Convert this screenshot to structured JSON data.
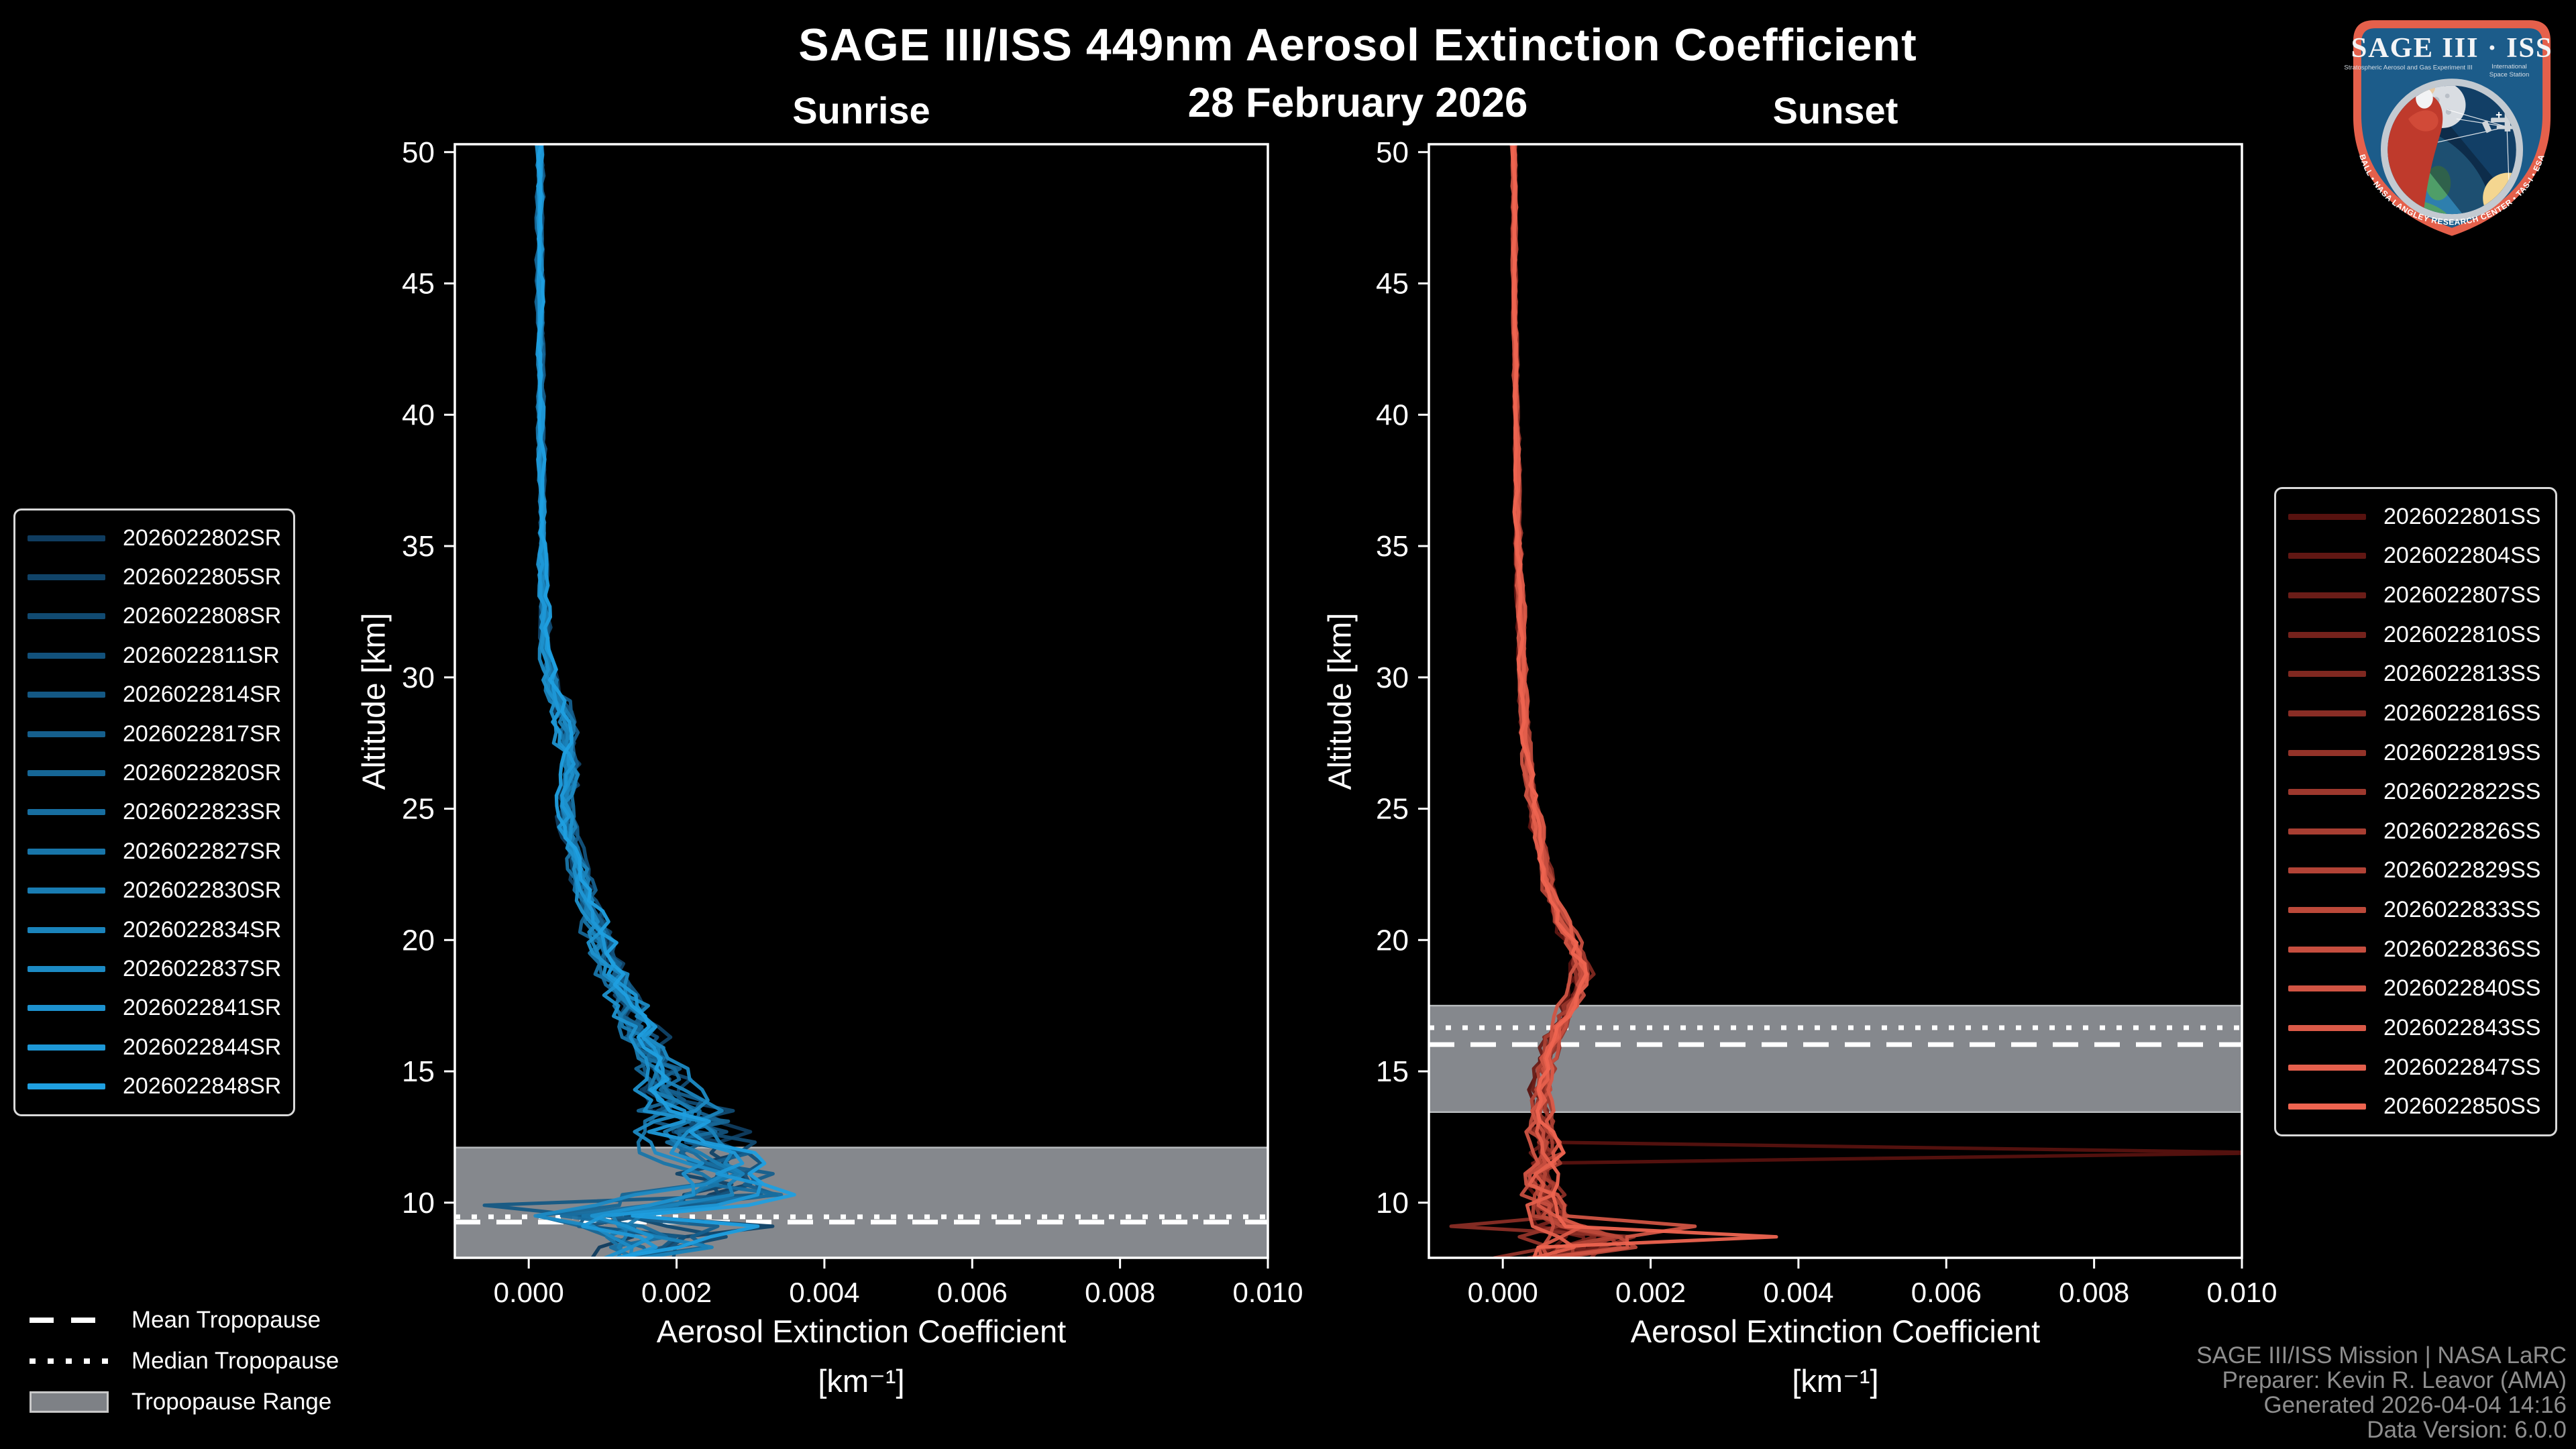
{
  "header": {
    "title": "SAGE III/ISS 449nm Aerosol Extinction Coefficient",
    "date": "28 February 2026",
    "panel_left": "Sunrise",
    "panel_right": "Sunset"
  },
  "axes": {
    "xlabel": "Aerosol Extinction Coefficient",
    "xunit": "[km⁻¹]",
    "ylabel": "Altitude [km]"
  },
  "tropopause_legend": {
    "mean": "Mean Tropopause",
    "median": "Median Tropopause",
    "range": "Tropopause Range"
  },
  "attribution": {
    "line1": "SAGE III/ISS Mission | NASA LaRC",
    "line2": "Preparer: Kevin R. Leavor (AMA)",
    "line3": "Generated 2026-04-04 14:16",
    "line4": "Data Version: 6.0.0"
  },
  "logo": {
    "title": "SAGE III · ISS",
    "subtitle_left": "Stratospheric Aerosol and Gas Experiment III",
    "subtitle_right_1": "International",
    "subtitle_right_2": "Space Station",
    "arc_text": "BALL • NASA LANGLEY RESEARCH CENTER • TAS-I • ESA"
  },
  "colors": {
    "background": "#000000",
    "axis": "#ffffff",
    "tick_label": "#ffffff",
    "tropopause_band": "#85888d",
    "tropopause_band_edge": "#b7babd",
    "tropopause_line": "#ffffff",
    "legend_border": "#d9d9d9",
    "attribution_text": "#8e8e8e",
    "sunrise_color_start": "#0f3c5f",
    "sunrise_color_end": "#1f9fe0",
    "sunset_color_start": "#57120f",
    "sunset_color_end": "#ee6450"
  },
  "chart_data": [
    {
      "type": "line",
      "panel": "Sunrise",
      "xlabel": "Aerosol Extinction Coefficient [km⁻¹]",
      "ylabel": "Altitude [km]",
      "xlim": [
        -0.001,
        0.01
      ],
      "ylim": [
        7.9,
        50.3
      ],
      "grid": false,
      "legend_position": "left-outside",
      "xticks": {
        "values": [
          0.0,
          0.002,
          0.004,
          0.006,
          0.008,
          0.01
        ],
        "labels": [
          "0.000",
          "0.002",
          "0.004",
          "0.006",
          "0.008",
          "0.010"
        ]
      },
      "yticks": {
        "values": [
          50,
          45,
          40,
          35,
          30,
          25,
          20,
          15,
          10
        ],
        "labels": [
          "50",
          "45",
          "40",
          "35",
          "30",
          "25",
          "20",
          "15",
          "10"
        ]
      },
      "series": [
        "2026022802SR",
        "2026022805SR",
        "2026022808SR",
        "2026022811SR",
        "2026022814SR",
        "2026022817SR",
        "2026022820SR",
        "2026022823SR",
        "2026022827SR",
        "2026022830SR",
        "2026022834SR",
        "2026022837SR",
        "2026022841SR",
        "2026022844SR",
        "2026022848SR"
      ],
      "mean_profile": {
        "altitude_km": [
          50,
          45,
          40,
          35,
          31,
          29.5,
          28.5,
          27.5,
          26.5,
          25.5,
          24.5,
          23.5,
          22.5,
          21.5,
          20.5,
          19.5,
          18.5,
          17.5,
          16.5,
          15.5,
          14.5,
          13.8,
          13.2,
          12.6,
          12.0,
          11.4,
          10.8,
          10.2,
          9.8,
          9.4,
          9.0,
          8.6,
          8.2,
          8.0
        ],
        "extinction": [
          0.00015,
          0.00015,
          0.00016,
          0.00018,
          0.00022,
          0.00032,
          0.00048,
          0.0005,
          0.00055,
          0.00048,
          0.00052,
          0.00058,
          0.00068,
          0.00078,
          0.0009,
          0.001,
          0.00115,
          0.0013,
          0.0015,
          0.0017,
          0.00185,
          0.00195,
          0.0021,
          0.00195,
          0.00215,
          0.0023,
          0.0025,
          0.0021,
          0.0015,
          0.0004,
          0.0013,
          0.0019,
          0.0015,
          0.0013
        ],
        "spread": [
          3e-05,
          3e-05,
          3e-05,
          4e-05,
          6e-05,
          0.0001,
          0.00012,
          0.00012,
          0.00012,
          0.0001,
          0.0001,
          0.0001,
          0.00012,
          0.00012,
          0.00013,
          0.00015,
          0.00018,
          0.0002,
          0.00022,
          0.00025,
          0.0003,
          0.0004,
          0.0005,
          0.00055,
          0.0006,
          0.00065,
          0.0007,
          0.00075,
          0.0008,
          0.0009,
          0.00085,
          0.00075,
          0.0006,
          0.0005
        ]
      },
      "feature_spikes": [
        {
          "series": 0,
          "alt_km": 12.7,
          "extinction": 0.003
        },
        {
          "series": 1,
          "alt_km": 9.3,
          "extinction": 0.0033
        },
        {
          "series": 3,
          "alt_km": 10.5,
          "extinction": 0.003
        },
        {
          "series": 6,
          "alt_km": 13.3,
          "extinction": 0.0027
        },
        {
          "series": 10,
          "alt_km": 11.1,
          "extinction": 0.0029
        },
        {
          "series": 14,
          "alt_km": 9.0,
          "extinction": 0.0031
        },
        {
          "series": 4,
          "alt_km": 9.8,
          "extinction": -0.0006
        }
      ],
      "tropopause": {
        "mean_km": 9.26,
        "median_km": 9.46,
        "range_km": [
          7.9,
          12.1
        ]
      }
    },
    {
      "type": "line",
      "panel": "Sunset",
      "xlabel": "Aerosol Extinction Coefficient [km⁻¹]",
      "ylabel": "Altitude [km]",
      "xlim": [
        -0.001,
        0.01
      ],
      "ylim": [
        7.9,
        50.3
      ],
      "grid": false,
      "legend_position": "right-outside",
      "xticks": {
        "values": [
          0.0,
          0.002,
          0.004,
          0.006,
          0.008,
          0.01
        ],
        "labels": [
          "0.000",
          "0.002",
          "0.004",
          "0.006",
          "0.008",
          "0.010"
        ]
      },
      "yticks": {
        "values": [
          50,
          45,
          40,
          35,
          30,
          25,
          20,
          15,
          10
        ],
        "labels": [
          "50",
          "45",
          "40",
          "35",
          "30",
          "25",
          "20",
          "15",
          "10"
        ]
      },
      "series": [
        "2026022801SS",
        "2026022804SS",
        "2026022807SS",
        "2026022810SS",
        "2026022813SS",
        "2026022816SS",
        "2026022819SS",
        "2026022822SS",
        "2026022826SS",
        "2026022829SS",
        "2026022833SS",
        "2026022836SS",
        "2026022840SS",
        "2026022843SS",
        "2026022847SS",
        "2026022850SS"
      ],
      "mean_profile": {
        "altitude_km": [
          50,
          45,
          40,
          35,
          31,
          28,
          26,
          24.5,
          23,
          22,
          21,
          20.2,
          19.5,
          18.8,
          18,
          17.2,
          16.4,
          15.6,
          14.8,
          14,
          13.2,
          12.4,
          11.8,
          11.2,
          10.6,
          10.0,
          9.6,
          9.2,
          8.8,
          8.5,
          8.2,
          8.0
        ],
        "extinction": [
          0.00015,
          0.00016,
          0.00018,
          0.00021,
          0.00026,
          0.0003,
          0.00036,
          0.00044,
          0.00055,
          0.00062,
          0.00075,
          0.0009,
          0.001,
          0.00108,
          0.001,
          0.00085,
          0.0007,
          0.0006,
          0.00055,
          0.00052,
          0.0005,
          0.00055,
          0.00058,
          0.00052,
          0.00056,
          0.0006,
          0.00065,
          0.0008,
          0.0011,
          0.0014,
          0.0009,
          0.0006
        ],
        "spread": [
          2e-05,
          2e-05,
          2e-05,
          3e-05,
          4e-05,
          5e-05,
          5e-05,
          6e-05,
          6e-05,
          7e-05,
          8e-05,
          9e-05,
          0.0001,
          0.0001,
          0.0001,
          0.0001,
          0.0001,
          0.0001,
          0.0001,
          0.0001,
          0.00012,
          0.00015,
          0.00018,
          0.0002,
          0.00022,
          0.00028,
          0.00035,
          0.00045,
          0.0006,
          0.0007,
          0.0006,
          0.0004
        ]
      },
      "feature_spikes": [
        {
          "series": 0,
          "alt_km": 11.8,
          "extinction": 0.0105
        },
        {
          "series": 15,
          "alt_km": 8.7,
          "extinction": 0.0037
        },
        {
          "series": 12,
          "alt_km": 9.1,
          "extinction": 0.0026
        },
        {
          "series": 10,
          "alt_km": 8.4,
          "extinction": 0.0018
        },
        {
          "series": 5,
          "alt_km": 8.9,
          "extinction": -0.0007
        }
      ],
      "tropopause": {
        "mean_km": 16.02,
        "median_km": 16.66,
        "range_km": [
          13.45,
          17.5
        ]
      }
    }
  ]
}
